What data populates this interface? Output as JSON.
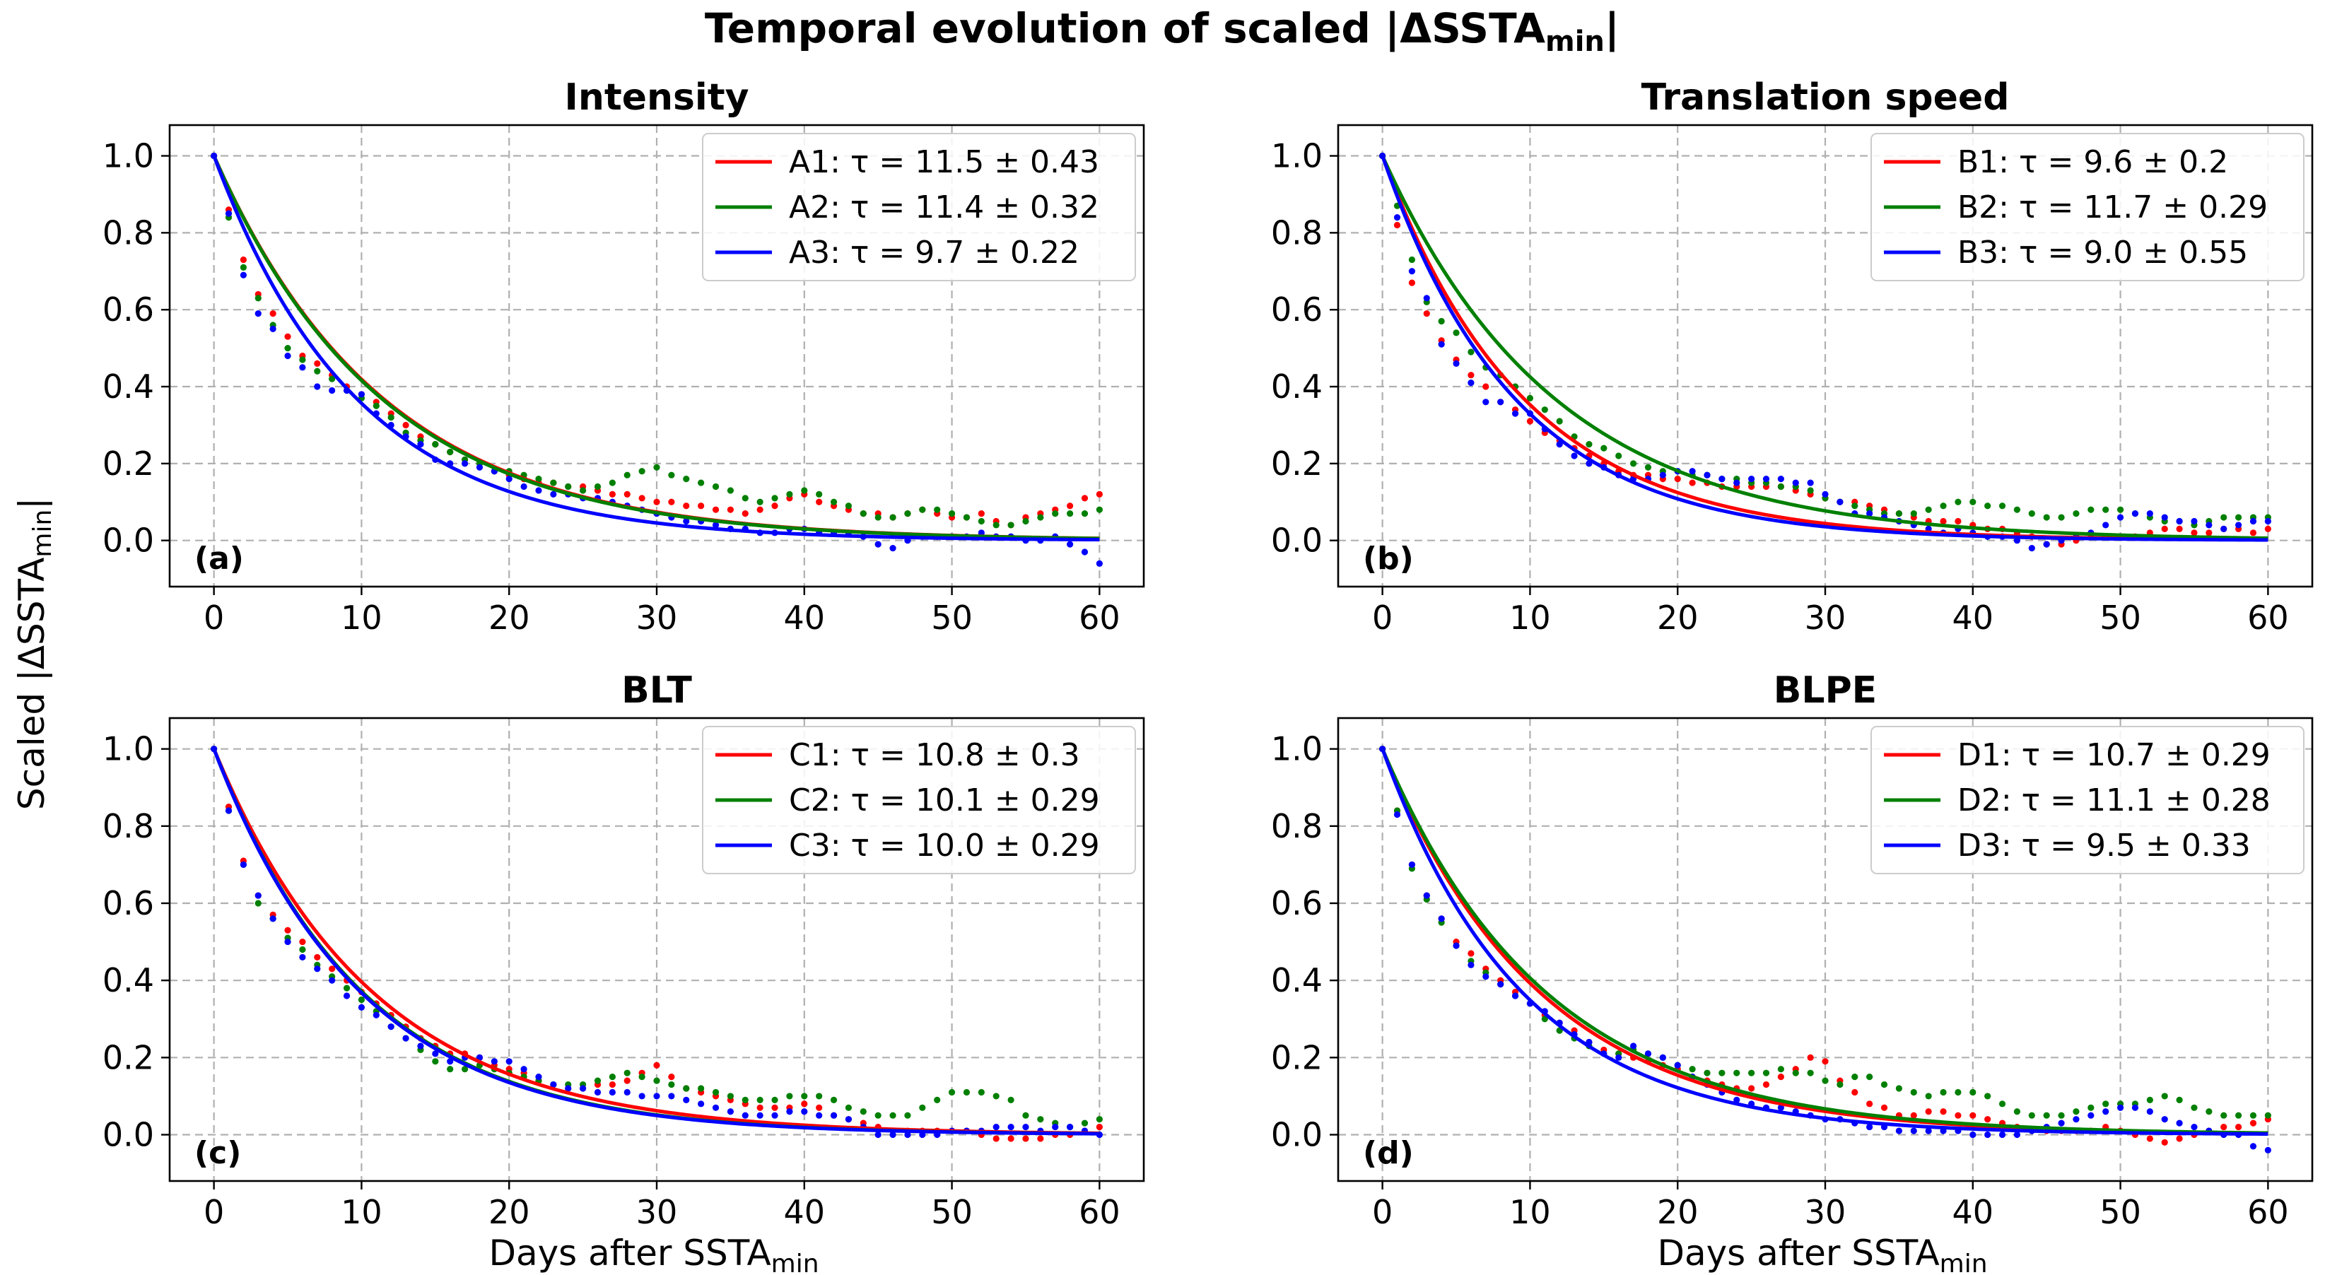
{
  "chart_data": {
    "title": "Temporal evolution of scaled |ΔSSTA",
    "title_sub": "min",
    "title_end": "|",
    "ylabel": "Scaled |ΔSSTA",
    "ylabel_sub": "min",
    "ylabel_end": "|",
    "xlabel": "Days after SSTA",
    "xlabel_sub": "min",
    "xlim": [
      -3,
      63
    ],
    "ylim": [
      -0.12,
      1.08
    ],
    "xticks": [
      "0",
      "10",
      "20",
      "30",
      "40",
      "50",
      "60"
    ],
    "yticks": [
      "0.0",
      "0.2",
      "0.4",
      "0.6",
      "0.8",
      "1.0"
    ],
    "colors": [
      "#ff0000",
      "#008000",
      "#0000ff"
    ],
    "panels": [
      {
        "type": "line",
        "title": "Intensity",
        "letter": "(a)",
        "series": [
          {
            "name": "A1",
            "tau": 11.5,
            "legend": "A1: τ = 11.5 ± 0.43",
            "points": [
              1.0,
              0.86,
              0.73,
              0.64,
              0.59,
              0.53,
              0.48,
              0.46,
              0.43,
              0.4,
              0.38,
              0.36,
              0.33,
              0.3,
              0.27,
              0.25,
              0.23,
              0.21,
              0.2,
              0.18,
              0.17,
              0.16,
              0.15,
              0.15,
              0.14,
              0.14,
              0.13,
              0.12,
              0.12,
              0.11,
              0.1,
              0.1,
              0.09,
              0.09,
              0.08,
              0.08,
              0.07,
              0.08,
              0.09,
              0.11,
              0.12,
              0.1,
              0.09,
              0.08,
              0.07,
              0.07,
              0.06,
              0.07,
              0.08,
              0.07,
              0.06,
              0.06,
              0.07,
              0.05,
              0.04,
              0.06,
              0.07,
              0.08,
              0.09,
              0.11,
              0.12
            ]
          },
          {
            "name": "A2",
            "tau": 11.4,
            "legend": "A2: τ = 11.4 ± 0.32",
            "points": [
              1.0,
              0.84,
              0.71,
              0.63,
              0.56,
              0.5,
              0.47,
              0.44,
              0.42,
              0.39,
              0.37,
              0.35,
              0.32,
              0.28,
              0.26,
              0.25,
              0.23,
              0.21,
              0.2,
              0.18,
              0.18,
              0.17,
              0.16,
              0.15,
              0.14,
              0.13,
              0.14,
              0.15,
              0.17,
              0.18,
              0.19,
              0.17,
              0.16,
              0.15,
              0.14,
              0.13,
              0.11,
              0.1,
              0.11,
              0.12,
              0.13,
              0.12,
              0.1,
              0.09,
              0.07,
              0.06,
              0.06,
              0.07,
              0.08,
              0.08,
              0.07,
              0.06,
              0.05,
              0.04,
              0.04,
              0.05,
              0.06,
              0.07,
              0.07,
              0.07,
              0.08
            ]
          },
          {
            "name": "A3",
            "tau": 9.7,
            "legend": "A3: τ = 9.7 ± 0.22",
            "points": [
              1.0,
              0.85,
              0.69,
              0.59,
              0.55,
              0.48,
              0.45,
              0.4,
              0.39,
              0.39,
              0.38,
              0.33,
              0.3,
              0.27,
              0.25,
              0.21,
              0.2,
              0.2,
              0.19,
              0.18,
              0.16,
              0.14,
              0.13,
              0.12,
              0.12,
              0.11,
              0.11,
              0.1,
              0.09,
              0.08,
              0.07,
              0.06,
              0.05,
              0.05,
              0.04,
              0.03,
              0.03,
              0.02,
              0.02,
              0.03,
              0.03,
              0.02,
              0.02,
              0.02,
              0.01,
              -0.01,
              -0.02,
              0.0,
              0.01,
              0.01,
              0.01,
              0.01,
              0.02,
              0.01,
              0.01,
              0.0,
              0.0,
              0.01,
              -0.01,
              -0.03,
              -0.06
            ]
          }
        ]
      },
      {
        "type": "line",
        "title": "Translation speed",
        "letter": "(b)",
        "series": [
          {
            "name": "B1",
            "tau": 9.6,
            "legend": "B1: τ = 9.6 ± 0.2",
            "points": [
              1.0,
              0.82,
              0.67,
              0.59,
              0.52,
              0.47,
              0.43,
              0.4,
              0.36,
              0.34,
              0.31,
              0.28,
              0.26,
              0.24,
              0.22,
              0.2,
              0.18,
              0.17,
              0.17,
              0.16,
              0.16,
              0.15,
              0.15,
              0.14,
              0.14,
              0.14,
              0.14,
              0.14,
              0.13,
              0.12,
              0.11,
              0.1,
              0.1,
              0.09,
              0.08,
              0.07,
              0.06,
              0.05,
              0.05,
              0.05,
              0.04,
              0.03,
              0.03,
              0.02,
              0.01,
              -0.01,
              -0.01,
              0.0,
              0.01,
              0.01,
              0.01,
              0.01,
              0.02,
              0.03,
              0.03,
              0.02,
              0.02,
              0.03,
              0.03,
              0.02,
              0.03
            ]
          },
          {
            "name": "B2",
            "tau": 11.7,
            "legend": "B2: τ = 11.7 ± 0.29",
            "points": [
              1.0,
              0.87,
              0.73,
              0.62,
              0.57,
              0.54,
              0.49,
              0.45,
              0.43,
              0.4,
              0.37,
              0.34,
              0.31,
              0.27,
              0.25,
              0.24,
              0.22,
              0.2,
              0.19,
              0.18,
              0.18,
              0.17,
              0.17,
              0.16,
              0.16,
              0.15,
              0.15,
              0.14,
              0.14,
              0.13,
              0.11,
              0.1,
              0.09,
              0.08,
              0.07,
              0.07,
              0.07,
              0.08,
              0.09,
              0.1,
              0.1,
              0.09,
              0.09,
              0.08,
              0.07,
              0.06,
              0.06,
              0.07,
              0.08,
              0.08,
              0.08,
              0.07,
              0.06,
              0.05,
              0.05,
              0.04,
              0.05,
              0.06,
              0.06,
              0.06,
              0.06
            ]
          },
          {
            "name": "B3",
            "tau": 9.0,
            "legend": "B3: τ = 9.0 ± 0.55",
            "points": [
              1.0,
              0.84,
              0.7,
              0.63,
              0.51,
              0.46,
              0.41,
              0.36,
              0.36,
              0.33,
              0.33,
              0.29,
              0.25,
              0.22,
              0.2,
              0.19,
              0.17,
              0.16,
              0.16,
              0.17,
              0.18,
              0.18,
              0.17,
              0.16,
              0.15,
              0.16,
              0.16,
              0.16,
              0.15,
              0.15,
              0.12,
              0.1,
              0.07,
              0.07,
              0.06,
              0.05,
              0.04,
              0.03,
              0.02,
              0.03,
              0.02,
              0.01,
              0.01,
              0.0,
              -0.02,
              -0.01,
              0.0,
              0.01,
              0.02,
              0.04,
              0.06,
              0.07,
              0.07,
              0.06,
              0.05,
              0.05,
              0.04,
              0.03,
              0.04,
              0.05,
              0.05
            ]
          }
        ]
      },
      {
        "type": "line",
        "title": "BLT",
        "letter": "(c)",
        "series": [
          {
            "name": "C1",
            "tau": 10.8,
            "legend": "C1: τ = 10.8 ± 0.3",
            "points": [
              1.0,
              0.85,
              0.71,
              0.62,
              0.57,
              0.53,
              0.5,
              0.46,
              0.43,
              0.4,
              0.37,
              0.34,
              0.31,
              0.28,
              0.25,
              0.23,
              0.21,
              0.21,
              0.2,
              0.18,
              0.17,
              0.16,
              0.14,
              0.13,
              0.12,
              0.12,
              0.13,
              0.13,
              0.14,
              0.16,
              0.18,
              0.15,
              0.12,
              0.11,
              0.1,
              0.09,
              0.08,
              0.07,
              0.07,
              0.07,
              0.08,
              0.07,
              0.05,
              0.04,
              0.03,
              0.02,
              0.01,
              0.01,
              0.01,
              0.01,
              0.01,
              0.01,
              0.0,
              -0.01,
              -0.01,
              -0.01,
              -0.01,
              0.0,
              0.0,
              0.01,
              0.02
            ]
          },
          {
            "name": "C2",
            "tau": 10.1,
            "legend": "C2: τ = 10.1 ± 0.29",
            "points": [
              1.0,
              0.84,
              0.7,
              0.6,
              0.56,
              0.51,
              0.48,
              0.44,
              0.41,
              0.38,
              0.35,
              0.32,
              0.28,
              0.25,
              0.22,
              0.19,
              0.17,
              0.17,
              0.18,
              0.17,
              0.16,
              0.15,
              0.14,
              0.13,
              0.13,
              0.13,
              0.14,
              0.15,
              0.16,
              0.15,
              0.14,
              0.13,
              0.12,
              0.12,
              0.11,
              0.1,
              0.09,
              0.09,
              0.09,
              0.1,
              0.1,
              0.1,
              0.09,
              0.07,
              0.06,
              0.05,
              0.05,
              0.05,
              0.07,
              0.09,
              0.11,
              0.11,
              0.11,
              0.1,
              0.09,
              0.05,
              0.04,
              0.03,
              0.02,
              0.03,
              0.04
            ]
          },
          {
            "name": "C3",
            "tau": 10.0,
            "legend": "C3: τ = 10.0 ± 0.29",
            "points": [
              1.0,
              0.84,
              0.7,
              0.62,
              0.56,
              0.5,
              0.46,
              0.43,
              0.4,
              0.36,
              0.33,
              0.31,
              0.28,
              0.25,
              0.23,
              0.21,
              0.19,
              0.2,
              0.2,
              0.19,
              0.19,
              0.17,
              0.15,
              0.13,
              0.12,
              0.12,
              0.11,
              0.11,
              0.11,
              0.1,
              0.1,
              0.1,
              0.09,
              0.08,
              0.07,
              0.06,
              0.05,
              0.05,
              0.05,
              0.06,
              0.06,
              0.05,
              0.05,
              0.04,
              0.02,
              0.0,
              0.0,
              0.0,
              0.0,
              0.0,
              0.01,
              0.01,
              0.01,
              0.02,
              0.02,
              0.02,
              0.01,
              0.02,
              0.02,
              0.01,
              0.0
            ]
          }
        ]
      },
      {
        "type": "line",
        "title": "BLPE",
        "letter": "(d)",
        "series": [
          {
            "name": "D1",
            "tau": 10.7,
            "legend": "D1: τ = 10.7 ± 0.29",
            "points": [
              1.0,
              0.84,
              0.7,
              0.62,
              0.56,
              0.5,
              0.47,
              0.43,
              0.4,
              0.37,
              0.34,
              0.31,
              0.29,
              0.27,
              0.24,
              0.22,
              0.21,
              0.2,
              0.19,
              0.18,
              0.17,
              0.15,
              0.14,
              0.13,
              0.12,
              0.12,
              0.13,
              0.15,
              0.17,
              0.2,
              0.19,
              0.14,
              0.11,
              0.08,
              0.07,
              0.05,
              0.05,
              0.06,
              0.06,
              0.05,
              0.05,
              0.04,
              0.03,
              0.02,
              0.01,
              0.01,
              0.01,
              0.01,
              0.01,
              0.02,
              0.01,
              0.0,
              -0.01,
              -0.02,
              -0.01,
              0.0,
              0.01,
              0.02,
              0.02,
              0.03,
              0.04
            ]
          },
          {
            "name": "D2",
            "tau": 11.1,
            "legend": "D2: τ = 11.1 ± 0.28",
            "points": [
              1.0,
              0.84,
              0.69,
              0.61,
              0.55,
              0.49,
              0.45,
              0.42,
              0.39,
              0.36,
              0.34,
              0.3,
              0.27,
              0.25,
              0.23,
              0.21,
              0.21,
              0.22,
              0.21,
              0.2,
              0.18,
              0.17,
              0.16,
              0.16,
              0.16,
              0.16,
              0.16,
              0.17,
              0.16,
              0.16,
              0.14,
              0.13,
              0.15,
              0.15,
              0.13,
              0.12,
              0.11,
              0.1,
              0.11,
              0.11,
              0.11,
              0.1,
              0.08,
              0.06,
              0.05,
              0.05,
              0.05,
              0.06,
              0.07,
              0.08,
              0.08,
              0.08,
              0.09,
              0.1,
              0.09,
              0.07,
              0.06,
              0.05,
              0.05,
              0.05,
              0.05
            ]
          },
          {
            "name": "D3",
            "tau": 9.5,
            "legend": "D3: τ = 9.5 ± 0.33",
            "points": [
              1.0,
              0.83,
              0.7,
              0.62,
              0.56,
              0.49,
              0.44,
              0.41,
              0.39,
              0.36,
              0.34,
              0.32,
              0.29,
              0.26,
              0.24,
              0.21,
              0.2,
              0.23,
              0.21,
              0.2,
              0.18,
              0.15,
              0.13,
              0.11,
              0.09,
              0.08,
              0.07,
              0.07,
              0.06,
              0.05,
              0.04,
              0.04,
              0.03,
              0.02,
              0.02,
              0.01,
              0.01,
              0.01,
              0.01,
              0.01,
              0.0,
              0.0,
              0.0,
              0.0,
              0.01,
              0.02,
              0.03,
              0.04,
              0.05,
              0.06,
              0.07,
              0.07,
              0.06,
              0.04,
              0.03,
              0.02,
              0.01,
              0.0,
              0.0,
              -0.03,
              -0.04
            ]
          }
        ]
      }
    ]
  }
}
